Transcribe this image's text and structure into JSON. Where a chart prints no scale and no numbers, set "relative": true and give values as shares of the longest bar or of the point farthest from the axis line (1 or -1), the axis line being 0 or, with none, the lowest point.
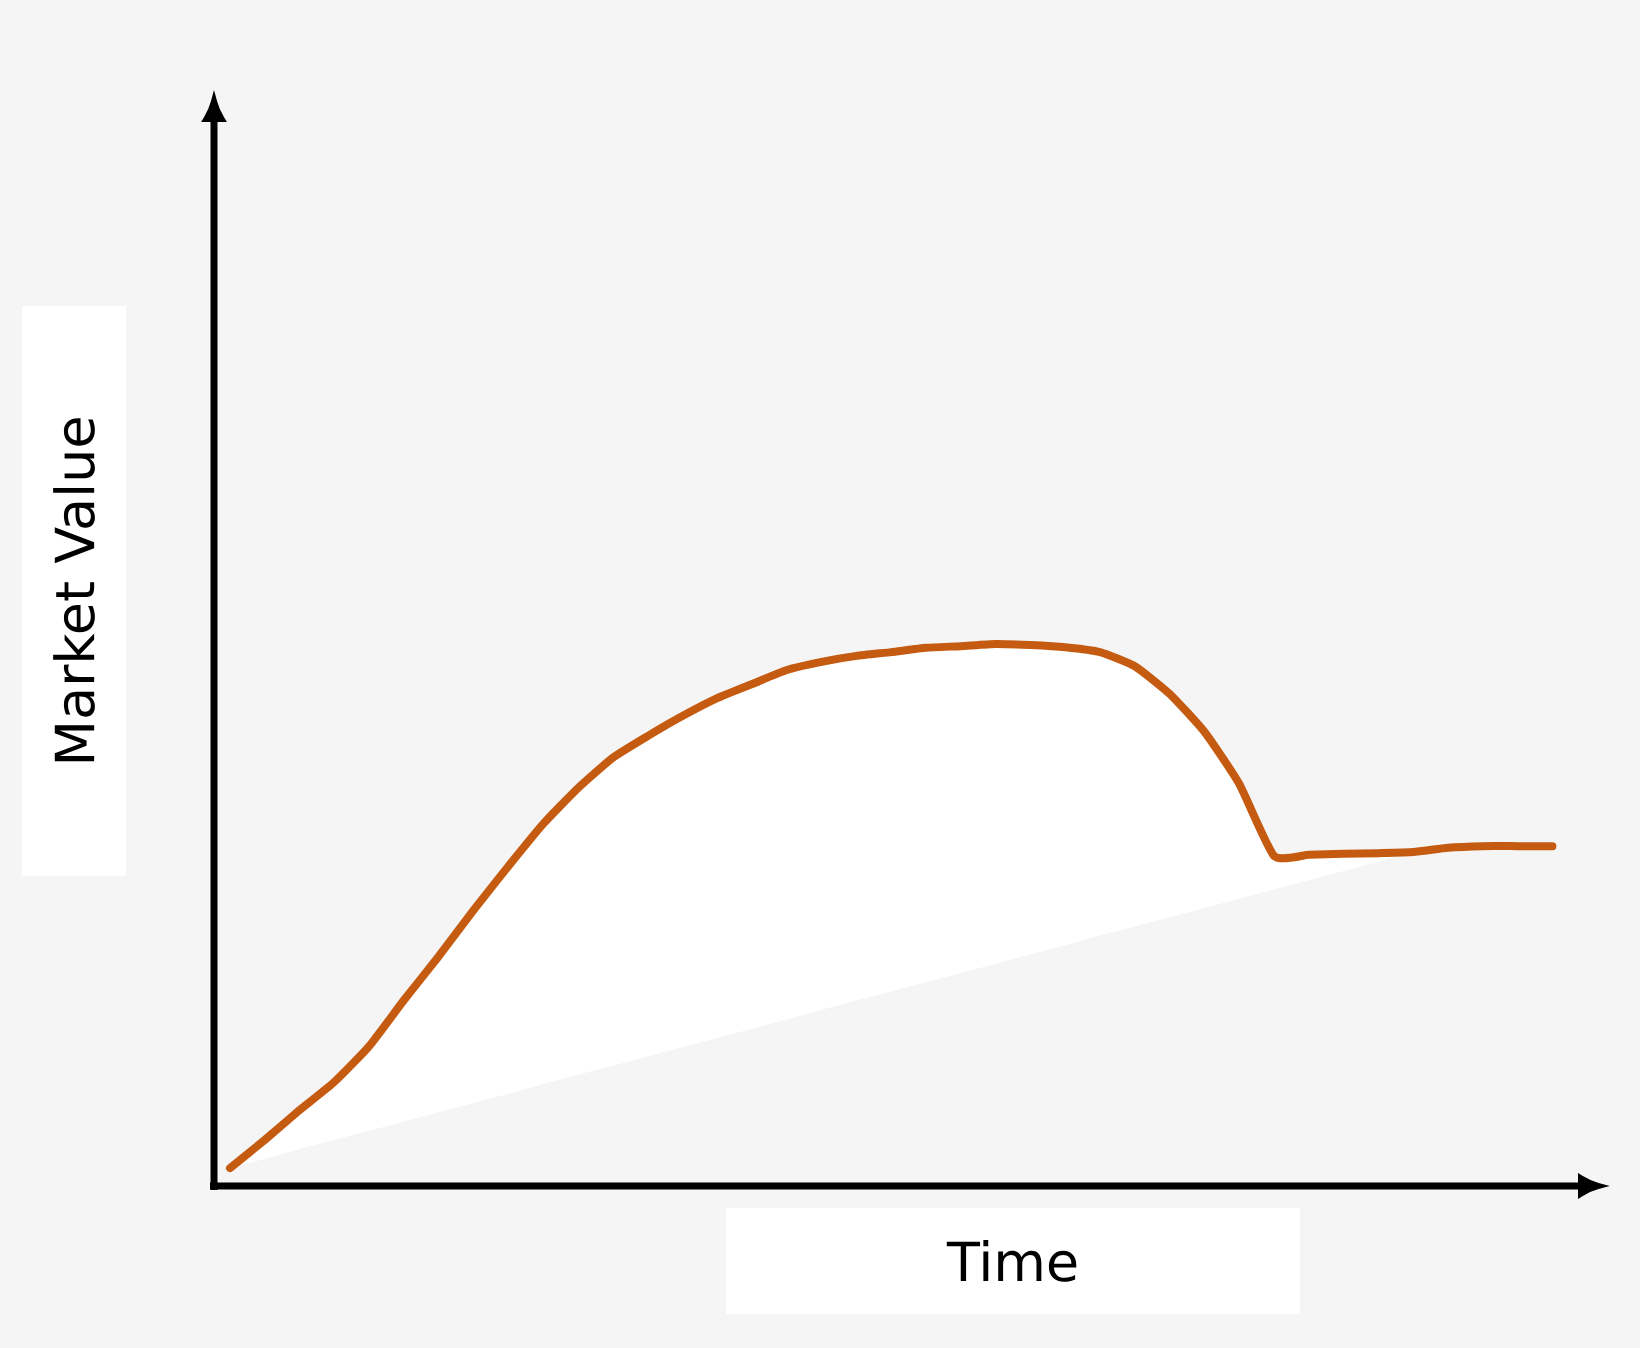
{
  "chart_data": {
    "type": "line",
    "xlabel": "Time",
    "ylabel": "Market Value",
    "relative": true,
    "categories": [
      null,
      null,
      null,
      null,
      null,
      null,
      null,
      null,
      null,
      null,
      null,
      null,
      null,
      null,
      null,
      null,
      null,
      null,
      null,
      null,
      null,
      null,
      null,
      null,
      null,
      null,
      null,
      null,
      null,
      null,
      null,
      null,
      null,
      null,
      null,
      null,
      null,
      null,
      null
    ],
    "series": [
      {
        "color": "#c55a11",
        "values": [
          0.033,
          0.085,
          0.14,
          0.192,
          0.258,
          0.343,
          0.424,
          0.509,
          0.59,
          0.668,
          0.734,
          0.79,
          0.83,
          0.867,
          0.9,
          0.926,
          0.952,
          0.967,
          0.978,
          0.985,
          0.993,
          0.996,
          1,
          0.998,
          0.994,
          0.985,
          0.959,
          0.908,
          0.838,
          0.742,
          0.609,
          0.611,
          0.613,
          0.614,
          0.616,
          0.624,
          0.627,
          0.627,
          0.627
        ],
        "upper": [
          0.033,
          0.085,
          0.14,
          0.192,
          0.258,
          0.343,
          0.424,
          0.509,
          0.59,
          0.668,
          0.734,
          0.79,
          0.83,
          0.867,
          0.9,
          0.926,
          0.952,
          0.967,
          0.978,
          0.985,
          0.993,
          0.996,
          1,
          0.998,
          0.994,
          0.985,
          0.959,
          0.908,
          0.838,
          0.742,
          0.609,
          0.611,
          0.613,
          0.614,
          0.616,
          null,
          null,
          null,
          null
        ],
        "lower": [
          0.033,
          0.05,
          0.068,
          0.085,
          0.102,
          0.119,
          0.136,
          0.153,
          0.17,
          0.188,
          0.205,
          0.222,
          0.239,
          0.256,
          0.273,
          0.29,
          0.307,
          0.325,
          0.342,
          0.359,
          0.376,
          0.393,
          0.41,
          0.427,
          0.444,
          0.462,
          0.479,
          0.496,
          0.513,
          0.53,
          0.547,
          0.564,
          0.581,
          0.598,
          0.616,
          null,
          null,
          null,
          null
        ]
      }
    ]
  }
}
